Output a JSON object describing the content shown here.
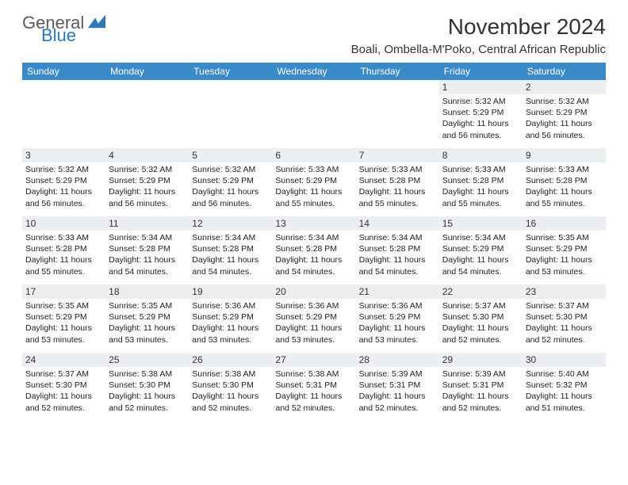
{
  "logo": {
    "word1": "General",
    "word2": "Blue",
    "color1": "#5a5a5a",
    "color2": "#2f78b7"
  },
  "title": "November 2024",
  "location": "Boali, Ombella-M'Poko, Central African Republic",
  "colors": {
    "header_bg": "#3a8ac8",
    "header_fg": "#ffffff",
    "daynum_bg": "#eceff1",
    "text": "#222222",
    "page_bg": "#ffffff"
  },
  "weekdays": [
    "Sunday",
    "Monday",
    "Tuesday",
    "Wednesday",
    "Thursday",
    "Friday",
    "Saturday"
  ],
  "weeks": [
    [
      {
        "empty": true
      },
      {
        "empty": true
      },
      {
        "empty": true
      },
      {
        "empty": true
      },
      {
        "empty": true
      },
      {
        "day": 1,
        "sunrise": "5:32 AM",
        "sunset": "5:29 PM",
        "daylight": "11 hours and 56 minutes."
      },
      {
        "day": 2,
        "sunrise": "5:32 AM",
        "sunset": "5:29 PM",
        "daylight": "11 hours and 56 minutes."
      }
    ],
    [
      {
        "day": 3,
        "sunrise": "5:32 AM",
        "sunset": "5:29 PM",
        "daylight": "11 hours and 56 minutes."
      },
      {
        "day": 4,
        "sunrise": "5:32 AM",
        "sunset": "5:29 PM",
        "daylight": "11 hours and 56 minutes."
      },
      {
        "day": 5,
        "sunrise": "5:32 AM",
        "sunset": "5:29 PM",
        "daylight": "11 hours and 56 minutes."
      },
      {
        "day": 6,
        "sunrise": "5:33 AM",
        "sunset": "5:29 PM",
        "daylight": "11 hours and 55 minutes."
      },
      {
        "day": 7,
        "sunrise": "5:33 AM",
        "sunset": "5:28 PM",
        "daylight": "11 hours and 55 minutes."
      },
      {
        "day": 8,
        "sunrise": "5:33 AM",
        "sunset": "5:28 PM",
        "daylight": "11 hours and 55 minutes."
      },
      {
        "day": 9,
        "sunrise": "5:33 AM",
        "sunset": "5:28 PM",
        "daylight": "11 hours and 55 minutes."
      }
    ],
    [
      {
        "day": 10,
        "sunrise": "5:33 AM",
        "sunset": "5:28 PM",
        "daylight": "11 hours and 55 minutes."
      },
      {
        "day": 11,
        "sunrise": "5:34 AM",
        "sunset": "5:28 PM",
        "daylight": "11 hours and 54 minutes."
      },
      {
        "day": 12,
        "sunrise": "5:34 AM",
        "sunset": "5:28 PM",
        "daylight": "11 hours and 54 minutes."
      },
      {
        "day": 13,
        "sunrise": "5:34 AM",
        "sunset": "5:28 PM",
        "daylight": "11 hours and 54 minutes."
      },
      {
        "day": 14,
        "sunrise": "5:34 AM",
        "sunset": "5:28 PM",
        "daylight": "11 hours and 54 minutes."
      },
      {
        "day": 15,
        "sunrise": "5:34 AM",
        "sunset": "5:29 PM",
        "daylight": "11 hours and 54 minutes."
      },
      {
        "day": 16,
        "sunrise": "5:35 AM",
        "sunset": "5:29 PM",
        "daylight": "11 hours and 53 minutes."
      }
    ],
    [
      {
        "day": 17,
        "sunrise": "5:35 AM",
        "sunset": "5:29 PM",
        "daylight": "11 hours and 53 minutes."
      },
      {
        "day": 18,
        "sunrise": "5:35 AM",
        "sunset": "5:29 PM",
        "daylight": "11 hours and 53 minutes."
      },
      {
        "day": 19,
        "sunrise": "5:36 AM",
        "sunset": "5:29 PM",
        "daylight": "11 hours and 53 minutes."
      },
      {
        "day": 20,
        "sunrise": "5:36 AM",
        "sunset": "5:29 PM",
        "daylight": "11 hours and 53 minutes."
      },
      {
        "day": 21,
        "sunrise": "5:36 AM",
        "sunset": "5:29 PM",
        "daylight": "11 hours and 53 minutes."
      },
      {
        "day": 22,
        "sunrise": "5:37 AM",
        "sunset": "5:30 PM",
        "daylight": "11 hours and 52 minutes."
      },
      {
        "day": 23,
        "sunrise": "5:37 AM",
        "sunset": "5:30 PM",
        "daylight": "11 hours and 52 minutes."
      }
    ],
    [
      {
        "day": 24,
        "sunrise": "5:37 AM",
        "sunset": "5:30 PM",
        "daylight": "11 hours and 52 minutes."
      },
      {
        "day": 25,
        "sunrise": "5:38 AM",
        "sunset": "5:30 PM",
        "daylight": "11 hours and 52 minutes."
      },
      {
        "day": 26,
        "sunrise": "5:38 AM",
        "sunset": "5:30 PM",
        "daylight": "11 hours and 52 minutes."
      },
      {
        "day": 27,
        "sunrise": "5:38 AM",
        "sunset": "5:31 PM",
        "daylight": "11 hours and 52 minutes."
      },
      {
        "day": 28,
        "sunrise": "5:39 AM",
        "sunset": "5:31 PM",
        "daylight": "11 hours and 52 minutes."
      },
      {
        "day": 29,
        "sunrise": "5:39 AM",
        "sunset": "5:31 PM",
        "daylight": "11 hours and 52 minutes."
      },
      {
        "day": 30,
        "sunrise": "5:40 AM",
        "sunset": "5:32 PM",
        "daylight": "11 hours and 51 minutes."
      }
    ]
  ],
  "labels": {
    "sunrise": "Sunrise:",
    "sunset": "Sunset:",
    "daylight": "Daylight:"
  }
}
